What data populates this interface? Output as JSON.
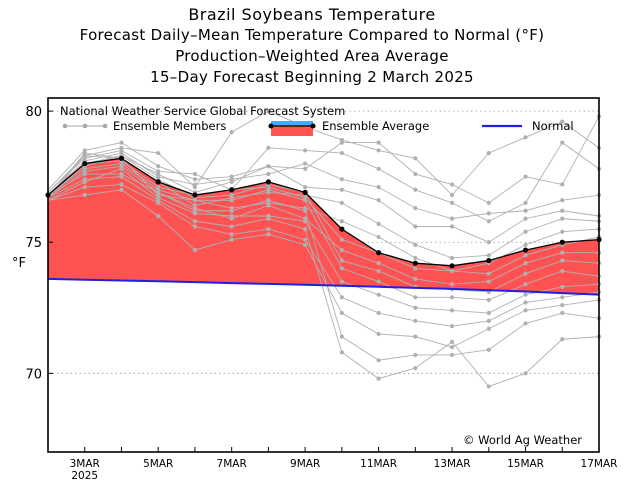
{
  "titles": {
    "line1": "Brazil Soybeans Temperature",
    "line2": "Forecast Daily–Mean Temperature Compared to Normal (°F)",
    "line3": "Production–Weighted Area Average",
    "line4": "15–Day Forecast Beginning 2 March 2025"
  },
  "chart_data": {
    "type": "line",
    "model_label": "National Weather Service Global Forecast System",
    "ylabel": "°F",
    "ylim": [
      67,
      80.5
    ],
    "yticks": [
      70,
      75,
      80
    ],
    "grid": "horizontal dotted",
    "x_days": [
      2,
      3,
      4,
      5,
      6,
      7,
      8,
      9,
      10,
      11,
      12,
      13,
      14,
      15,
      16,
      17
    ],
    "xtick_days": [
      3,
      5,
      7,
      9,
      11,
      13,
      15,
      17
    ],
    "xtick_labels": [
      "3MAR",
      "5MAR",
      "7MAR",
      "9MAR",
      "11MAR",
      "13MAR",
      "15MAR",
      "17MAR"
    ],
    "xtick_sublabel": "2025",
    "legend": {
      "placement": "top",
      "members": "Ensemble Members",
      "average": "Ensemble Average",
      "normal": "Normal"
    },
    "credit": "© World Ag Weather",
    "series": [
      {
        "name": "Ensemble Average",
        "values": [
          76.8,
          78.0,
          78.2,
          77.3,
          76.8,
          77.0,
          77.3,
          76.9,
          75.5,
          74.6,
          74.2,
          74.1,
          74.3,
          74.7,
          75.0,
          75.1
        ]
      },
      {
        "name": "Normal",
        "values": [
          73.6,
          73.57,
          73.54,
          73.51,
          73.48,
          73.44,
          73.41,
          73.38,
          73.34,
          73.3,
          73.26,
          73.22,
          73.17,
          73.12,
          73.06,
          73.0
        ]
      },
      {
        "name": "Ensemble Members",
        "members": [
          [
            77.0,
            78.5,
            78.8,
            77.9,
            77.4,
            77.5,
            77.9,
            77.8,
            78.8,
            78.8,
            77.6,
            77.2,
            76.5,
            77.5,
            77.2,
            79.8
          ],
          [
            76.9,
            78.3,
            78.6,
            78.4,
            77.1,
            79.2,
            80.0,
            79.4,
            78.9,
            78.5,
            78.2,
            76.8,
            78.4,
            79.0,
            79.6,
            78.6
          ],
          [
            76.9,
            78.2,
            78.5,
            77.7,
            77.6,
            77.0,
            78.6,
            78.5,
            78.4,
            77.8,
            77.0,
            76.5,
            75.8,
            76.5,
            78.8,
            77.8
          ],
          [
            76.8,
            78.1,
            78.4,
            77.5,
            77.2,
            77.4,
            77.6,
            78.0,
            77.4,
            77.1,
            76.3,
            75.9,
            76.1,
            76.2,
            76.6,
            76.8
          ],
          [
            76.8,
            78.0,
            78.3,
            77.6,
            76.9,
            77.3,
            77.9,
            77.1,
            77.0,
            76.6,
            75.6,
            75.6,
            75.0,
            75.9,
            76.2,
            76.0
          ],
          [
            76.7,
            78.4,
            78.2,
            77.3,
            76.4,
            76.7,
            76.9,
            76.8,
            76.5,
            75.7,
            74.9,
            74.4,
            74.5,
            75.4,
            75.9,
            75.8
          ],
          [
            76.8,
            77.8,
            78.0,
            77.0,
            76.6,
            76.3,
            76.5,
            76.3,
            75.8,
            75.2,
            74.4,
            73.9,
            74.2,
            74.9,
            75.4,
            75.5
          ],
          [
            76.8,
            78.0,
            78.1,
            77.1,
            76.8,
            77.0,
            77.1,
            76.7,
            75.1,
            74.6,
            74.0,
            73.9,
            73.8,
            74.5,
            74.9,
            75.2
          ],
          [
            76.7,
            77.7,
            77.9,
            76.9,
            76.3,
            75.9,
            76.4,
            75.9,
            74.7,
            74.2,
            73.6,
            73.4,
            73.5,
            74.2,
            74.6,
            74.6
          ],
          [
            76.8,
            77.9,
            78.3,
            77.4,
            76.7,
            76.8,
            77.2,
            76.9,
            74.3,
            73.9,
            73.3,
            73.2,
            73.1,
            73.8,
            74.3,
            74.2
          ],
          [
            76.7,
            78.3,
            78.2,
            76.8,
            76.6,
            76.6,
            77.0,
            76.6,
            74.0,
            73.5,
            72.9,
            72.9,
            72.8,
            73.4,
            73.9,
            73.7
          ],
          [
            76.6,
            77.3,
            77.8,
            76.7,
            76.1,
            76.0,
            76.0,
            75.8,
            73.5,
            73.0,
            72.5,
            72.4,
            72.3,
            73.0,
            73.3,
            73.4
          ],
          [
            76.6,
            77.1,
            77.2,
            76.5,
            75.6,
            75.3,
            75.5,
            75.1,
            72.9,
            72.3,
            72.0,
            71.8,
            72.0,
            72.7,
            72.9,
            73.1
          ],
          [
            76.6,
            76.8,
            77.0,
            76.0,
            74.7,
            75.1,
            75.3,
            74.9,
            72.3,
            71.5,
            71.4,
            71.0,
            71.7,
            72.4,
            72.6,
            72.8
          ],
          [
            76.8,
            77.6,
            77.6,
            76.9,
            76.2,
            76.2,
            76.6,
            76.2,
            71.4,
            70.5,
            70.7,
            70.7,
            70.9,
            71.9,
            72.3,
            72.1
          ],
          [
            76.7,
            77.4,
            77.5,
            76.6,
            75.8,
            75.6,
            75.9,
            75.5,
            70.8,
            69.8,
            70.2,
            71.2,
            69.5,
            70.0,
            71.3,
            71.4
          ]
        ]
      }
    ]
  },
  "colors": {
    "fill": "#ff5252",
    "avg_line": "#000000",
    "normal": "#2020e0",
    "members": "#b0b0b0",
    "legend_band": "#44aaff"
  }
}
